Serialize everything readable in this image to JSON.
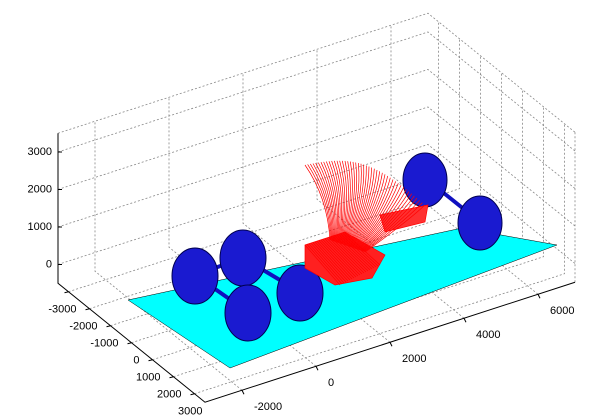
{
  "chart_data": {
    "type": "scene3d",
    "xlim": [
      -3000,
      7000
    ],
    "ylim": [
      -3500,
      3500
    ],
    "zlim": [
      -500,
      3500
    ],
    "xticks": [
      -2000,
      0,
      2000,
      4000,
      6000
    ],
    "yticks": [
      -3000,
      -2000,
      -1000,
      0,
      1000,
      2000,
      3000
    ],
    "zticks": [
      0,
      1000,
      2000,
      3000
    ],
    "grid": true
  }
}
